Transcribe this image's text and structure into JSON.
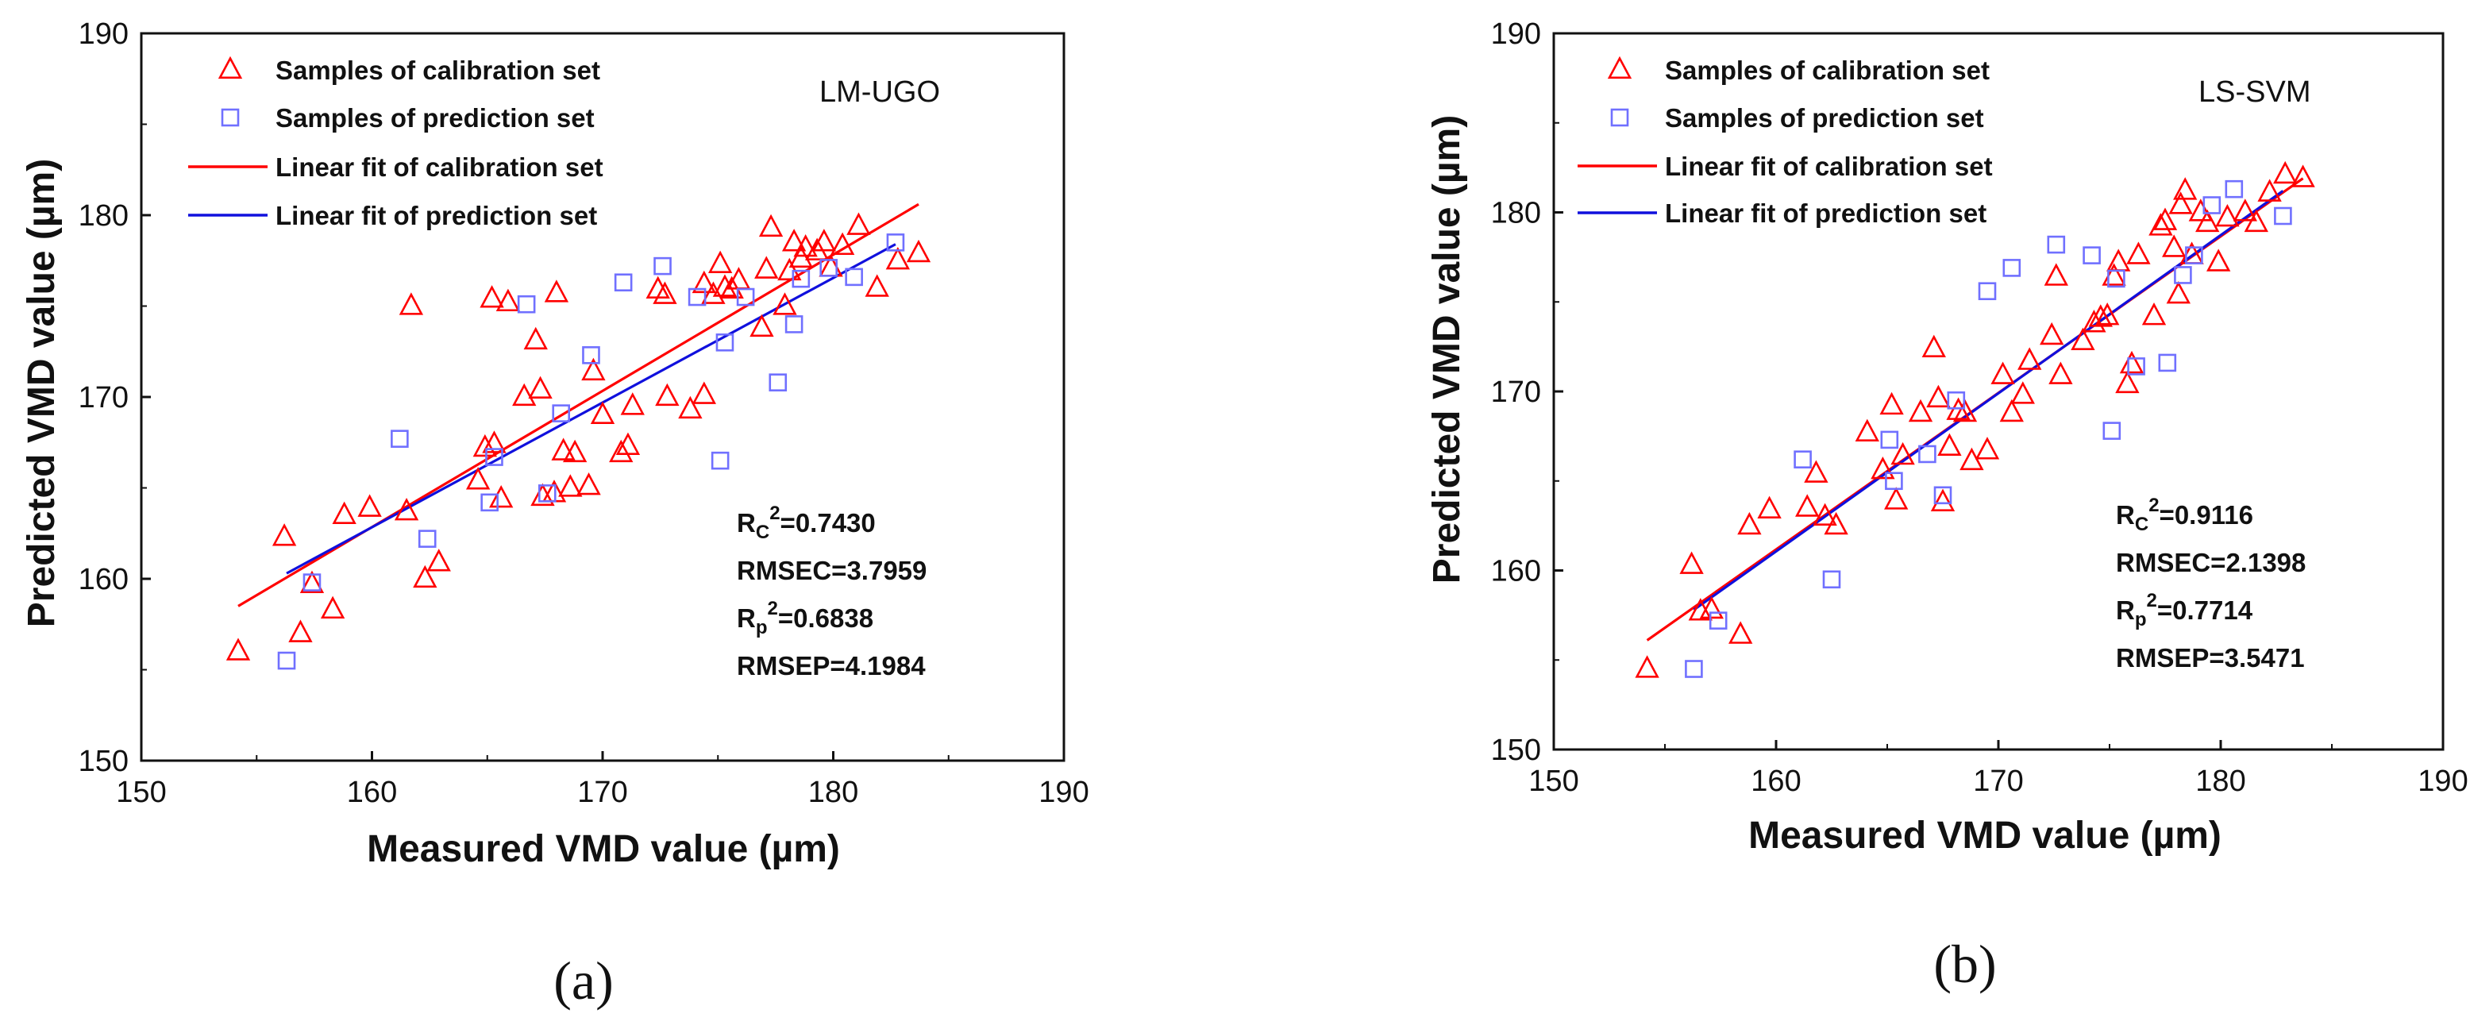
{
  "chart_data": [
    {
      "type": "scatter",
      "panel_label": "(a)",
      "model": "LM-UGO",
      "xlabel": "Measured VMD value (µm)",
      "ylabel": "Predicted VMD value (µm)",
      "xlim": [
        150,
        190
      ],
      "ylim": [
        150,
        190
      ],
      "xticks": [
        150,
        160,
        170,
        180,
        190
      ],
      "yticks": [
        150,
        160,
        170,
        180,
        190
      ],
      "legend_position": "top-left",
      "legend": [
        "Samples of calibration set",
        "Samples of prediction set",
        "Linear fit of calibration set",
        "Linear fit of prediction set"
      ],
      "stats": [
        {
          "label": "R",
          "sub": "C",
          "sup": "2",
          "value": "=0.7430"
        },
        {
          "label": "RMSEC=3.7959",
          "sub": "",
          "sup": "",
          "value": ""
        },
        {
          "label": "R",
          "sub": "p",
          "sup": "2",
          "value": "=0.6838"
        },
        {
          "label": "RMSEP=4.1984",
          "sub": "",
          "sup": "",
          "value": ""
        }
      ],
      "calibration": [
        [
          154.2,
          156.0
        ],
        [
          156.2,
          162.3
        ],
        [
          156.9,
          157.0
        ],
        [
          157.4,
          159.7
        ],
        [
          158.3,
          158.3
        ],
        [
          158.8,
          163.5
        ],
        [
          159.9,
          163.9
        ],
        [
          161.5,
          163.7
        ],
        [
          161.7,
          175.0
        ],
        [
          162.3,
          160.0
        ],
        [
          162.9,
          160.9
        ],
        [
          164.6,
          165.4
        ],
        [
          164.9,
          167.2
        ],
        [
          165.2,
          175.4
        ],
        [
          165.3,
          167.4
        ],
        [
          165.6,
          164.4
        ],
        [
          165.9,
          175.2
        ],
        [
          166.6,
          170.0
        ],
        [
          167.1,
          173.1
        ],
        [
          167.3,
          170.4
        ],
        [
          167.4,
          164.5
        ],
        [
          167.9,
          164.7
        ],
        [
          168.0,
          175.7
        ],
        [
          168.3,
          167.0
        ],
        [
          168.6,
          165.0
        ],
        [
          168.8,
          166.9
        ],
        [
          169.4,
          165.1
        ],
        [
          169.6,
          171.4
        ],
        [
          170.0,
          169.0
        ],
        [
          170.8,
          166.9
        ],
        [
          171.1,
          167.3
        ],
        [
          171.3,
          169.5
        ],
        [
          172.4,
          175.9
        ],
        [
          172.7,
          175.6
        ],
        [
          172.8,
          170.0
        ],
        [
          173.8,
          169.3
        ],
        [
          174.4,
          170.1
        ],
        [
          174.4,
          176.2
        ],
        [
          174.8,
          175.6
        ],
        [
          175.1,
          177.3
        ],
        [
          175.3,
          176.0
        ],
        [
          175.6,
          175.9
        ],
        [
          175.9,
          176.4
        ],
        [
          176.9,
          173.8
        ],
        [
          177.1,
          177.0
        ],
        [
          177.3,
          179.3
        ],
        [
          177.9,
          175.0
        ],
        [
          178.1,
          176.9
        ],
        [
          178.3,
          178.5
        ],
        [
          178.6,
          177.6
        ],
        [
          178.8,
          178.2
        ],
        [
          179.3,
          178.0
        ],
        [
          179.6,
          178.5
        ],
        [
          179.9,
          177.1
        ],
        [
          180.4,
          178.3
        ],
        [
          181.1,
          179.4
        ],
        [
          181.9,
          176.0
        ],
        [
          182.8,
          177.5
        ],
        [
          183.7,
          177.9
        ]
      ],
      "prediction": [
        [
          156.3,
          155.5
        ],
        [
          157.4,
          159.8
        ],
        [
          161.2,
          167.7
        ],
        [
          162.4,
          162.2
        ],
        [
          165.1,
          164.2
        ],
        [
          165.3,
          166.7
        ],
        [
          166.7,
          175.1
        ],
        [
          167.6,
          164.7
        ],
        [
          168.2,
          169.1
        ],
        [
          169.5,
          172.3
        ],
        [
          170.9,
          176.3
        ],
        [
          172.6,
          177.2
        ],
        [
          174.1,
          175.5
        ],
        [
          175.1,
          166.5
        ],
        [
          175.3,
          173.0
        ],
        [
          176.2,
          175.5
        ],
        [
          177.6,
          170.8
        ],
        [
          178.3,
          174.0
        ],
        [
          178.6,
          176.5
        ],
        [
          179.8,
          177.1
        ],
        [
          180.9,
          176.6
        ],
        [
          182.7,
          178.5
        ]
      ],
      "cal_fit": [
        [
          154.2,
          158.5
        ],
        [
          183.7,
          180.6
        ]
      ],
      "pred_fit": [
        [
          156.3,
          160.3
        ],
        [
          182.7,
          178.4
        ]
      ]
    },
    {
      "type": "scatter",
      "panel_label": "(b)",
      "model": "LS-SVM",
      "xlabel": "Measured VMD value (µm)",
      "ylabel": "Predicted VMD value (µm)",
      "xlim": [
        150,
        190
      ],
      "ylim": [
        150,
        190
      ],
      "xticks": [
        150,
        160,
        170,
        180,
        190
      ],
      "yticks": [
        150,
        160,
        170,
        180,
        190
      ],
      "legend_position": "top-left",
      "legend": [
        "Samples of calibration set",
        "Samples of prediction set",
        "Linear fit of calibration set",
        "Linear fit of prediction set"
      ],
      "stats": [
        {
          "label": "R",
          "sub": "C",
          "sup": "2",
          "value": "=0.9116"
        },
        {
          "label": "RMSEC=2.1398",
          "sub": "",
          "sup": "",
          "value": ""
        },
        {
          "label": "R",
          "sub": "p",
          "sup": "2",
          "value": "=0.7714"
        },
        {
          "label": "RMSEP=3.5471",
          "sub": "",
          "sup": "",
          "value": ""
        }
      ],
      "calibration": [
        [
          154.2,
          154.5
        ],
        [
          156.2,
          160.3
        ],
        [
          156.6,
          157.7
        ],
        [
          157.1,
          157.8
        ],
        [
          158.4,
          156.4
        ],
        [
          158.8,
          162.5
        ],
        [
          159.7,
          163.4
        ],
        [
          161.4,
          163.5
        ],
        [
          161.8,
          165.4
        ],
        [
          162.2,
          163.0
        ],
        [
          162.7,
          162.5
        ],
        [
          164.1,
          167.7
        ],
        [
          164.8,
          165.6
        ],
        [
          165.2,
          169.2
        ],
        [
          165.4,
          163.9
        ],
        [
          165.7,
          166.4
        ],
        [
          166.5,
          168.8
        ],
        [
          167.1,
          172.4
        ],
        [
          167.3,
          169.6
        ],
        [
          167.5,
          163.8
        ],
        [
          167.8,
          166.9
        ],
        [
          168.2,
          168.9
        ],
        [
          168.5,
          168.8
        ],
        [
          168.8,
          166.1
        ],
        [
          169.5,
          166.7
        ],
        [
          170.2,
          170.9
        ],
        [
          170.6,
          168.8
        ],
        [
          171.1,
          169.8
        ],
        [
          171.4,
          171.7
        ],
        [
          172.4,
          173.1
        ],
        [
          172.6,
          176.4
        ],
        [
          172.8,
          170.9
        ],
        [
          173.8,
          172.8
        ],
        [
          174.3,
          173.8
        ],
        [
          174.6,
          174.1
        ],
        [
          174.9,
          174.2
        ],
        [
          175.2,
          176.4
        ],
        [
          175.4,
          177.2
        ],
        [
          175.8,
          170.4
        ],
        [
          176.0,
          171.5
        ],
        [
          176.3,
          177.6
        ],
        [
          177.0,
          174.2
        ],
        [
          177.3,
          179.2
        ],
        [
          177.5,
          179.5
        ],
        [
          177.9,
          178.0
        ],
        [
          178.1,
          175.4
        ],
        [
          178.2,
          180.4
        ],
        [
          178.4,
          181.2
        ],
        [
          178.7,
          177.6
        ],
        [
          179.1,
          180.0
        ],
        [
          179.4,
          179.4
        ],
        [
          179.9,
          177.2
        ],
        [
          180.3,
          179.7
        ],
        [
          181.1,
          180.0
        ],
        [
          181.6,
          179.4
        ],
        [
          182.2,
          181.1
        ],
        [
          182.9,
          182.1
        ],
        [
          183.7,
          181.9
        ]
      ],
      "prediction": [
        [
          156.3,
          154.5
        ],
        [
          157.4,
          157.2
        ],
        [
          161.2,
          166.2
        ],
        [
          162.5,
          159.5
        ],
        [
          165.1,
          167.3
        ],
        [
          165.3,
          165.0
        ],
        [
          166.8,
          166.5
        ],
        [
          167.5,
          164.2
        ],
        [
          168.1,
          169.5
        ],
        [
          169.5,
          175.6
        ],
        [
          170.6,
          176.9
        ],
        [
          172.6,
          178.2
        ],
        [
          174.2,
          177.6
        ],
        [
          175.1,
          167.8
        ],
        [
          175.3,
          176.3
        ],
        [
          176.2,
          171.4
        ],
        [
          177.6,
          171.6
        ],
        [
          178.3,
          176.5
        ],
        [
          178.8,
          177.6
        ],
        [
          179.6,
          180.4
        ],
        [
          180.6,
          181.3
        ],
        [
          182.8,
          179.8
        ]
      ],
      "cal_fit": [
        [
          154.2,
          156.1
        ],
        [
          183.7,
          181.9
        ]
      ],
      "pred_fit": [
        [
          156.3,
          157.8
        ],
        [
          182.8,
          181.2
        ]
      ]
    }
  ],
  "colors": {
    "calibration": "#ff0000",
    "prediction": "#7070ff",
    "cal_fit": "#ff0000",
    "pred_fit": "#1010dd",
    "axis": "#111111"
  }
}
